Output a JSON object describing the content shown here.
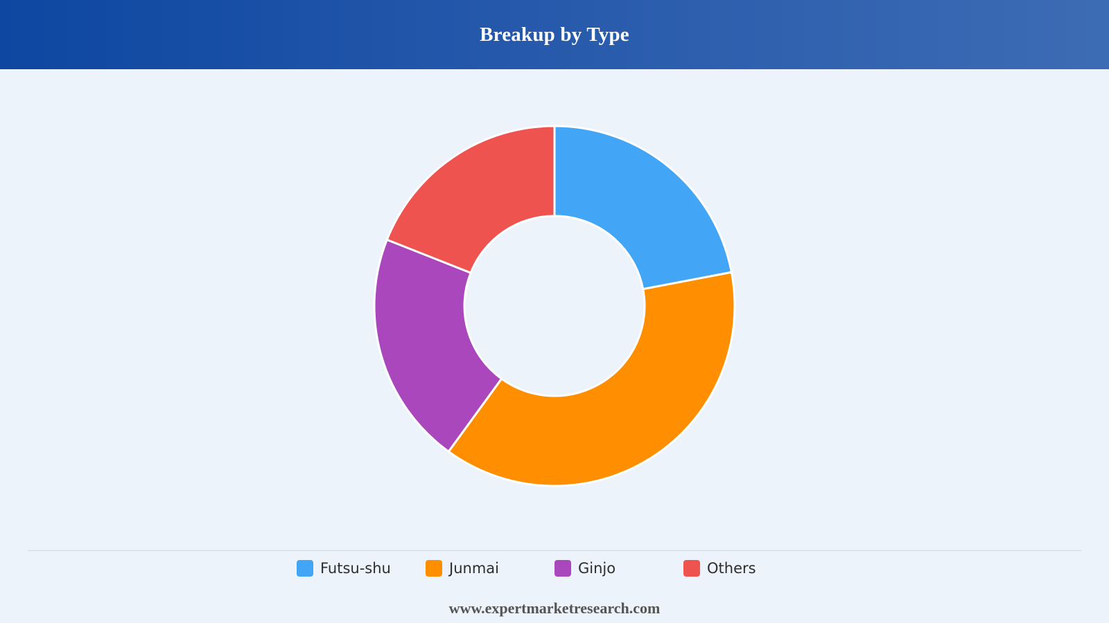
{
  "header": {
    "title": "Breakup by Type"
  },
  "chart_data": {
    "type": "pie",
    "variant": "donut",
    "title": "Breakup by Type",
    "categories": [
      "Futsu-shu",
      "Junmai",
      "Ginjo",
      "Others"
    ],
    "values": [
      22,
      38,
      21,
      19
    ],
    "colors": [
      "#42a5f5",
      "#ff8f00",
      "#ab47bc",
      "#ef5350"
    ],
    "legend_position": "bottom"
  },
  "footer": {
    "source": "www.expertmarketresearch.com"
  }
}
